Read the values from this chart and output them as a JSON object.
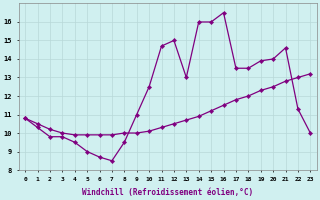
{
  "xlabel": "Windchill (Refroidissement éolien,°C)",
  "line1_x": [
    0,
    1,
    2,
    3,
    4,
    5,
    6,
    7,
    8,
    9,
    10,
    11,
    12,
    13,
    14,
    15,
    16,
    17,
    18,
    19,
    20,
    21,
    22,
    23
  ],
  "line1_y": [
    10.8,
    10.3,
    9.8,
    9.8,
    9.5,
    9.0,
    8.7,
    8.5,
    9.5,
    11.0,
    12.5,
    14.7,
    15.0,
    13.0,
    16.0,
    16.0,
    16.5,
    13.5,
    13.5,
    13.9,
    14.0,
    14.6,
    11.3,
    10.0
  ],
  "line2_x": [
    0,
    1,
    2,
    3,
    4,
    5,
    6,
    7,
    8,
    9,
    10,
    11,
    12,
    13,
    14,
    15,
    16,
    17,
    18,
    19,
    20,
    21,
    22,
    23
  ],
  "line2_y": [
    10.8,
    10.5,
    10.2,
    10.0,
    9.9,
    9.9,
    9.9,
    9.9,
    10.0,
    10.0,
    10.1,
    10.3,
    10.5,
    10.7,
    10.9,
    11.2,
    11.5,
    11.8,
    12.0,
    12.3,
    12.5,
    12.8,
    13.0,
    13.2
  ],
  "line_color": "#800080",
  "bg_color": "#d0f0f0",
  "grid_color": "#b8d8d8",
  "ylim": [
    8,
    17
  ],
  "xlim_min": -0.5,
  "xlim_max": 23.5,
  "yticks": [
    8,
    9,
    10,
    11,
    12,
    13,
    14,
    15,
    16
  ],
  "xticks": [
    0,
    1,
    2,
    3,
    4,
    5,
    6,
    7,
    8,
    9,
    10,
    11,
    12,
    13,
    14,
    15,
    16,
    17,
    18,
    19,
    20,
    21,
    22,
    23
  ]
}
